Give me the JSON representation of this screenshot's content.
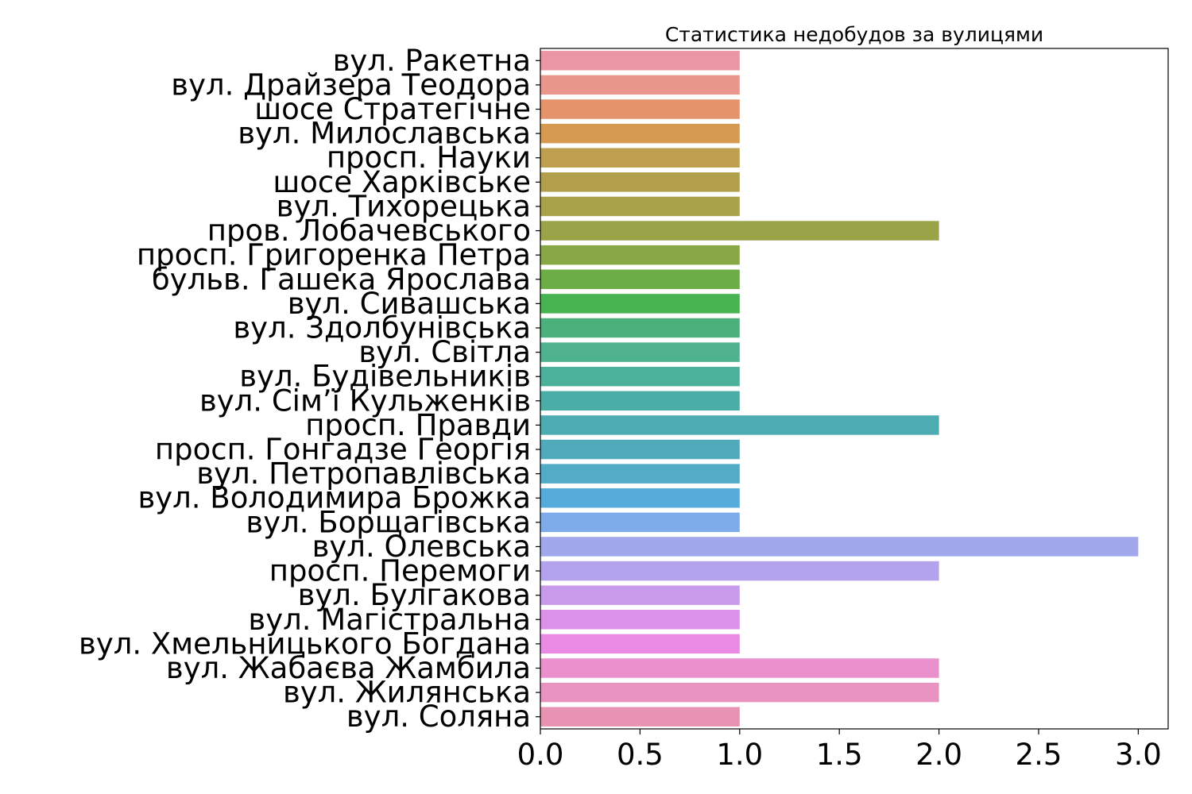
{
  "chart_data": {
    "type": "bar",
    "orientation": "horizontal",
    "title": "Статистика недобудов за вулицями",
    "xlabel": "",
    "ylabel": "",
    "xlim": [
      0,
      3.15
    ],
    "xticks": [
      "0.0",
      "0.5",
      "1.0",
      "1.5",
      "2.0",
      "2.5",
      "3.0"
    ],
    "grid": false,
    "categories": [
      "вул. Ракетна",
      "вул. Драйзера Теодора",
      "шосе Стратегічне",
      "вул. Милославська",
      "просп. Науки",
      "шосе Харківське",
      "вул. Тихорецька",
      "пров. Лобачевського",
      "просп. Григоренка Петра",
      "бульв. Гашека Ярослава",
      "вул. Сивашська",
      "вул. Здолбунівська",
      "вул. Світла",
      "вул. Будівельників",
      "вул. Сім’ї Кульженків",
      "просп. Правди",
      "просп. Гонгадзе Георгія",
      "вул. Петропавлівська",
      "вул. Володимира Брожка",
      "вул. Борщагівська",
      "вул. Олевська",
      "просп. Перемоги",
      "вул. Булгакова",
      "вул. Магістральна",
      "вул. Хмельницького Богдана",
      "вул. Жабаєва Жамбила",
      "вул. Жилянська",
      "вул. Соляна"
    ],
    "values": [
      1,
      1,
      1,
      1,
      1,
      1,
      1,
      2,
      1,
      1,
      1,
      1,
      1,
      1,
      1,
      2,
      1,
      1,
      1,
      1,
      3,
      2,
      1,
      1,
      1,
      2,
      2,
      1
    ],
    "colors": [
      "#ea96a3",
      "#e9968c",
      "#e4936b",
      "#d69b50",
      "#be9e4f",
      "#b29f4c",
      "#a9a24a",
      "#9aa348",
      "#88a846",
      "#6dad46",
      "#48b351",
      "#4cb07c",
      "#4db28d",
      "#4cb19b",
      "#4aaea7",
      "#4dabb2",
      "#50aabb",
      "#52acc7",
      "#55acdb",
      "#7eacea",
      "#a1a9ec",
      "#b3a2ec",
      "#c89bea",
      "#dc91e9",
      "#e98be2",
      "#e990cd",
      "#e893c1",
      "#e993b3"
    ]
  }
}
